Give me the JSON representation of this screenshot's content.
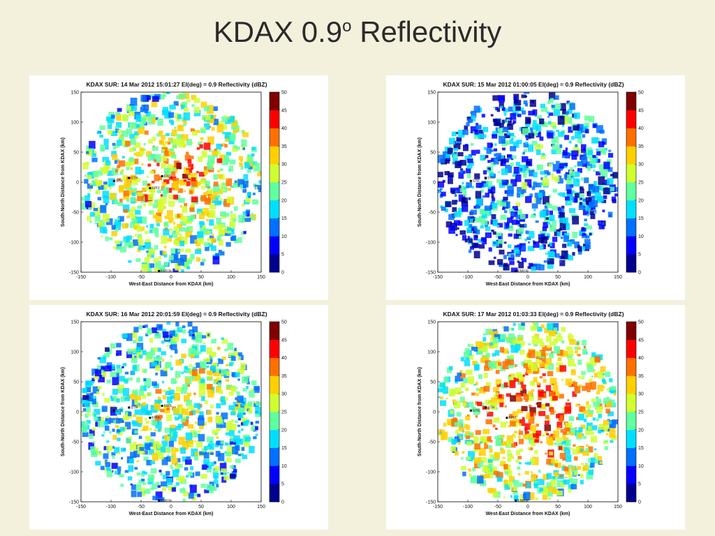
{
  "slide": {
    "title_main": "KDAX 0.9",
    "title_sup": "o",
    "title_rest": " Reflectivity"
  },
  "panels": [
    {
      "title": "KDAX SUR: 14 Mar 2012 15:01:27  El(deg) = 0.9  Reflectivity (dBZ)",
      "intensity": 0.75,
      "stations": [
        {
          "label": "STR",
          "x": -95,
          "y": 2
        },
        {
          "label": "STH",
          "x": -70,
          "y": 7
        },
        {
          "label": "KPIX",
          "x": -35,
          "y": -10
        },
        {
          "label": "KWS",
          "x": -15,
          "y": 10
        },
        {
          "label": "KMUX",
          "x": -20,
          "y": -148
        }
      ]
    },
    {
      "title": "KDAX SUR: 15 Mar 2012 01:00:05  El(deg) = 0.9  Reflectivity (dBZ)",
      "intensity": 0.35,
      "stations": [
        {
          "label": "STR",
          "x": -95,
          "y": 2
        },
        {
          "label": "STH",
          "x": -70,
          "y": 7
        },
        {
          "label": "KMUX",
          "x": -20,
          "y": -148
        }
      ]
    },
    {
      "title": "KDAX SUR: 16 Mar 2012 20:01:59  El(deg) = 0.9  Reflectivity (dBZ)",
      "intensity": 0.6,
      "stations": [
        {
          "label": "STR",
          "x": -95,
          "y": 2
        },
        {
          "label": "STH",
          "x": -70,
          "y": 7
        },
        {
          "label": "KPIX",
          "x": -35,
          "y": -10
        },
        {
          "label": "KWS",
          "x": -15,
          "y": 10
        },
        {
          "label": "KMUX",
          "x": -20,
          "y": -148
        }
      ]
    },
    {
      "title": "KDAX SUR: 17 Mar 2012 01:03:33  El(deg) = 0.9  Reflectivity (dBZ)",
      "intensity": 0.85,
      "stations": [
        {
          "label": "STR",
          "x": -95,
          "y": 2
        },
        {
          "label": "STH",
          "x": -70,
          "y": 7
        },
        {
          "label": "KPIX",
          "x": -35,
          "y": -10
        },
        {
          "label": "KMUX",
          "x": -20,
          "y": -148
        }
      ]
    }
  ],
  "axes": {
    "xlabel": "West-East Distance from KDAX (km)",
    "ylabel": "South-North Distance from KDAX (km)",
    "x_ticks": [
      "-150",
      "-100",
      "-50",
      "0",
      "50",
      "100",
      "150"
    ],
    "y_ticks": [
      "150",
      "100",
      "50",
      "0",
      "-50",
      "-100",
      "-150"
    ],
    "xlim": [
      -150,
      150
    ],
    "ylim": [
      -150,
      150
    ]
  },
  "colorbar": {
    "ticks": [
      "50",
      "45",
      "40",
      "35",
      "30",
      "25",
      "20",
      "15",
      "10",
      "5",
      "0"
    ],
    "range": [
      0,
      50
    ],
    "colors": [
      "#00008f",
      "#0000ff",
      "#0070ff",
      "#00dfff",
      "#60ffa0",
      "#d0ff30",
      "#ffd000",
      "#ff7000",
      "#ff0000",
      "#800000"
    ]
  }
}
